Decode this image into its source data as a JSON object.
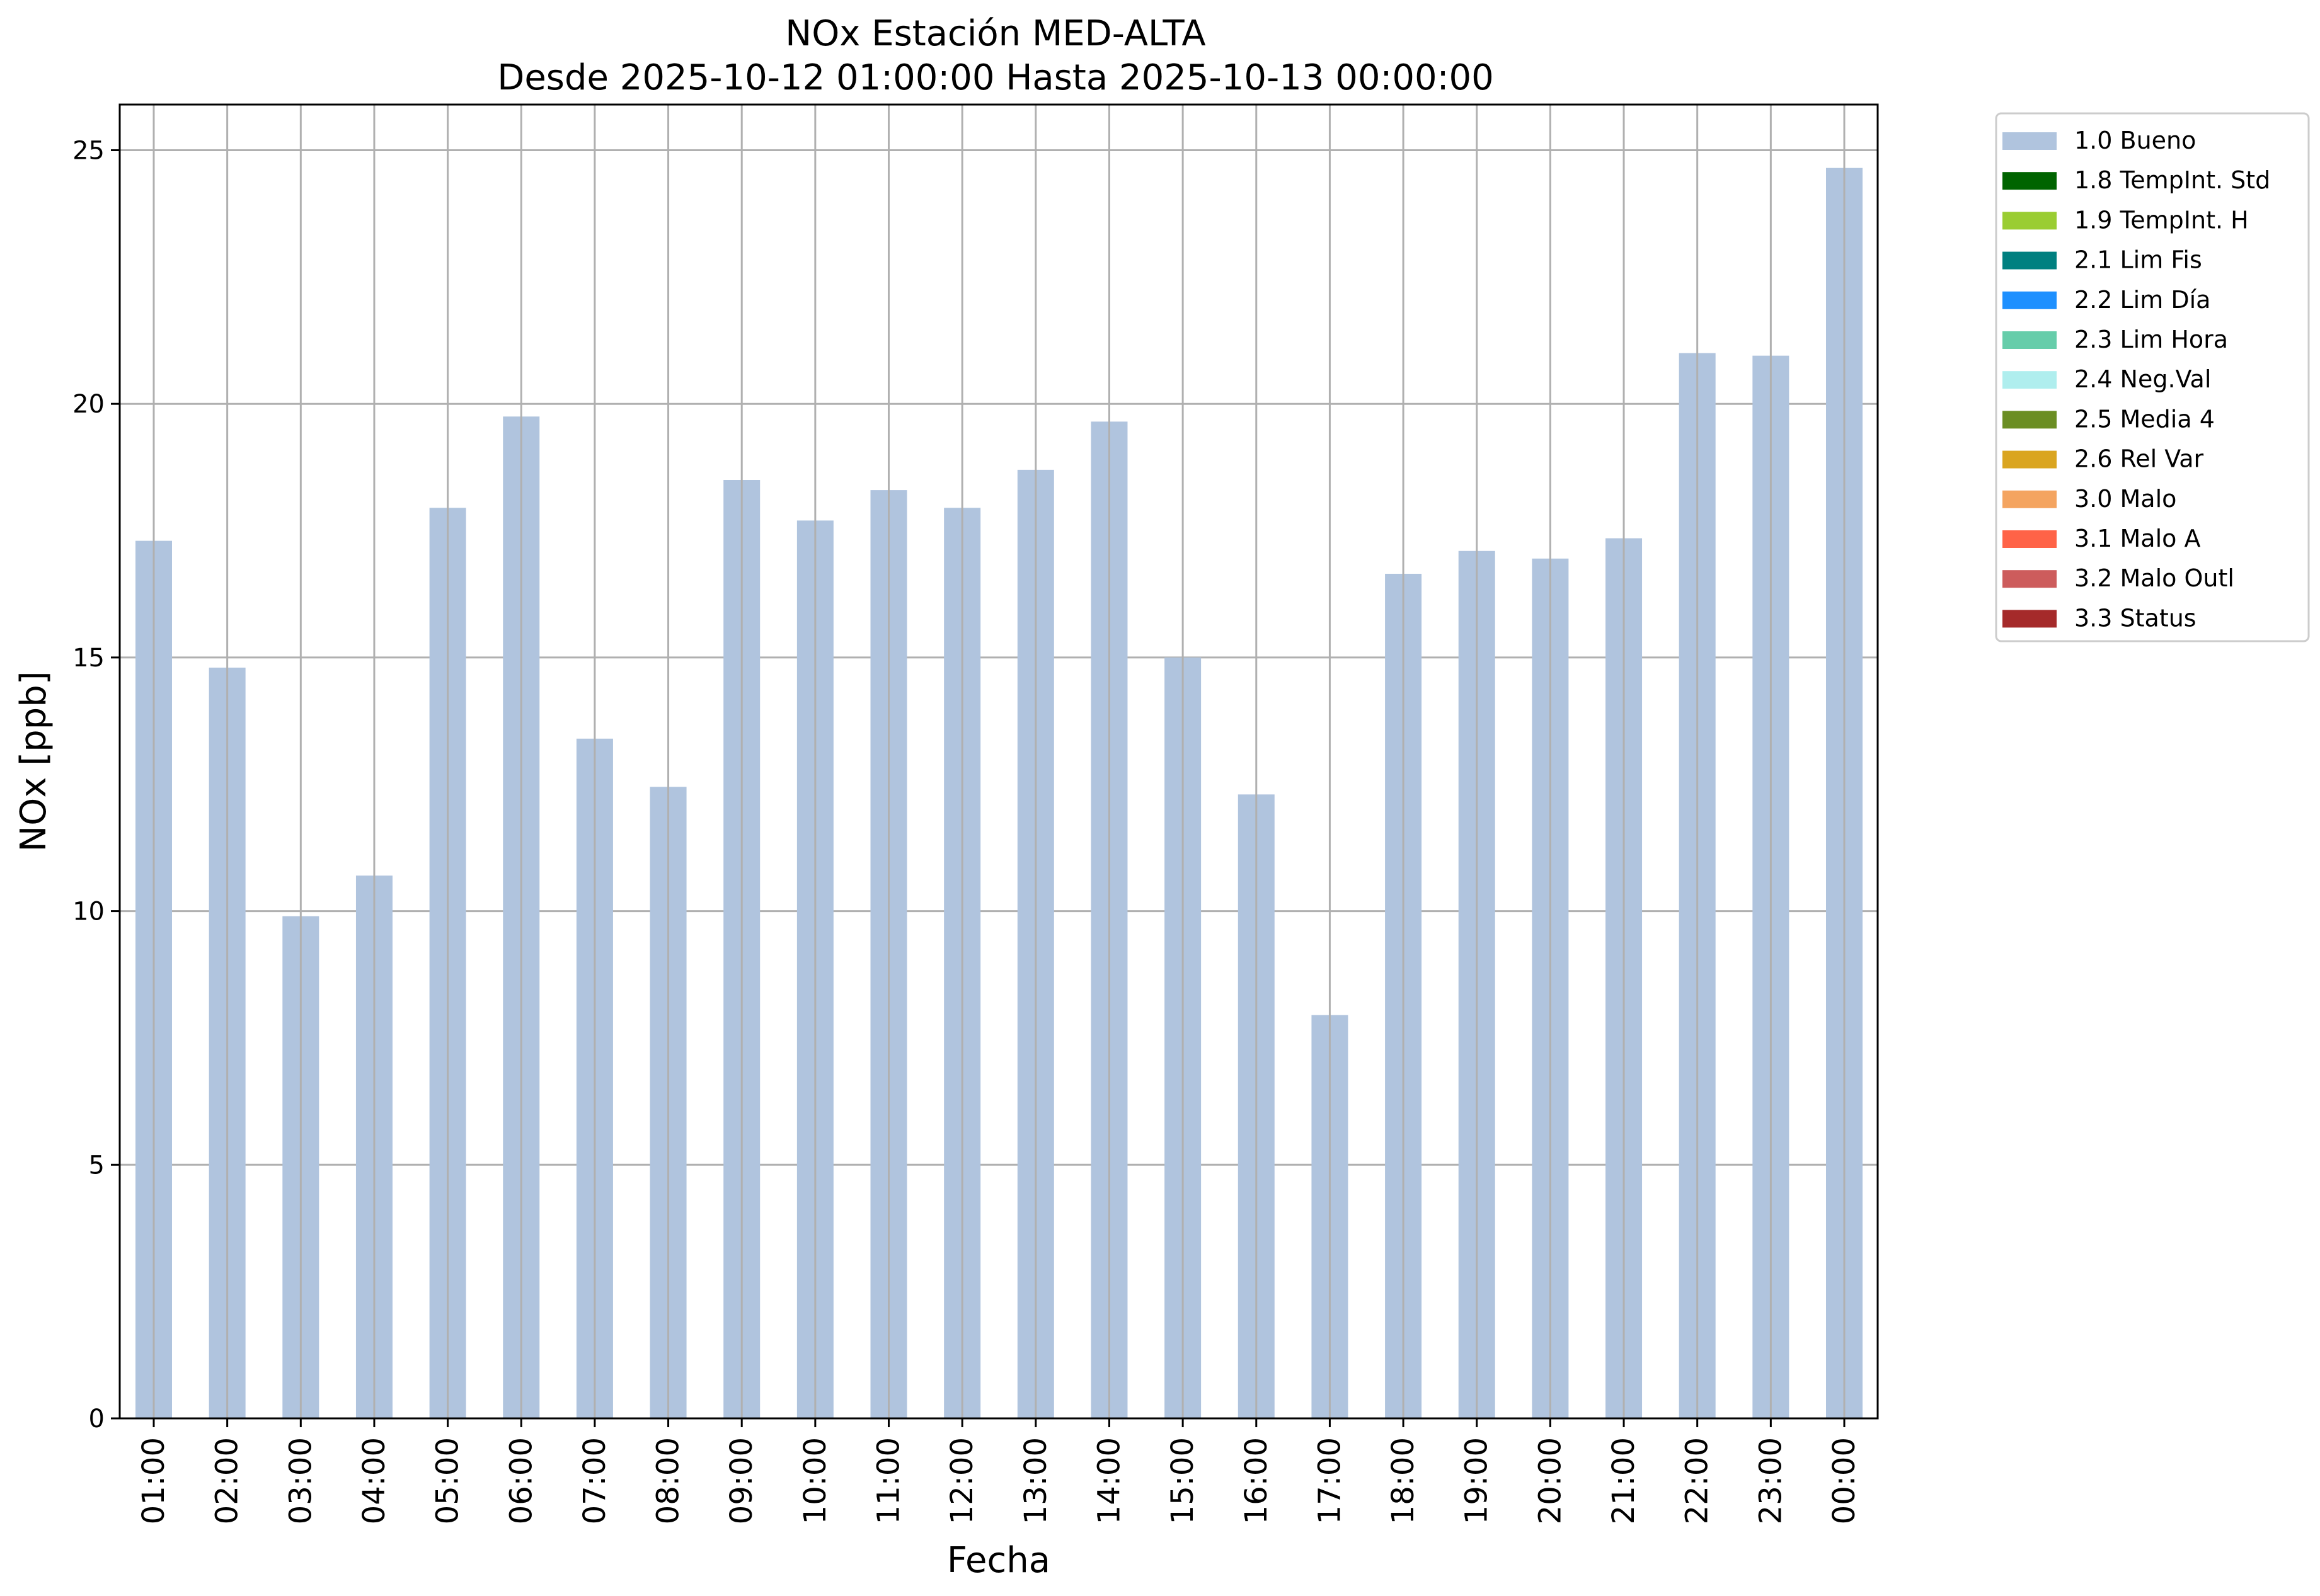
{
  "chart_data": {
    "type": "bar",
    "title": "NOx Estación MED-ALTA",
    "subtitle": "Desde 2025-10-12 01:00:00 Hasta 2025-10-13 00:00:00",
    "xlabel": "Fecha",
    "ylabel": "NOx [ppb]",
    "ylim": [
      0,
      25.9
    ],
    "yticks": [
      "0",
      "5",
      "10",
      "15",
      "20",
      "25"
    ],
    "categories": [
      "01:00",
      "02:00",
      "03:00",
      "04:00",
      "05:00",
      "06:00",
      "07:00",
      "08:00",
      "09:00",
      "10:00",
      "11:00",
      "12:00",
      "13:00",
      "14:00",
      "15:00",
      "16:00",
      "17:00",
      "18:00",
      "19:00",
      "20:00",
      "21:00",
      "22:00",
      "23:00",
      "00:00"
    ],
    "series": [
      {
        "name": "1.0 Bueno",
        "color": "#b0c4de",
        "values": [
          17.3,
          14.8,
          9.9,
          10.7,
          17.95,
          19.75,
          13.4,
          12.45,
          18.5,
          17.7,
          18.3,
          17.95,
          18.7,
          19.65,
          15.0,
          12.3,
          7.95,
          16.65,
          17.1,
          16.95,
          17.35,
          21.0,
          20.95,
          24.65
        ]
      }
    ],
    "legend": {
      "placement": "outside-top-right",
      "entries": [
        {
          "label": "1.0 Bueno",
          "color": "#b0c4de"
        },
        {
          "label": "1.8 TempInt. Std",
          "color": "#006400"
        },
        {
          "label": "1.9 TempInt. H",
          "color": "#9acd32"
        },
        {
          "label": "2.1 Lim Fis",
          "color": "#008080"
        },
        {
          "label": "2.2 Lim Día",
          "color": "#1e90ff"
        },
        {
          "label": "2.3 Lim Hora",
          "color": "#66cdaa"
        },
        {
          "label": "2.4 Neg.Val",
          "color": "#afeeee"
        },
        {
          "label": "2.5 Media 4",
          "color": "#6b8e23"
        },
        {
          "label": "2.6 Rel Var",
          "color": "#daa520"
        },
        {
          "label": "3.0 Malo",
          "color": "#f4a460"
        },
        {
          "label": "3.1 Malo A",
          "color": "#ff6347"
        },
        {
          "label": "3.2 Malo Outl",
          "color": "#cd5c5c"
        },
        {
          "label": "3.3 Status",
          "color": "#a52a2a"
        }
      ]
    },
    "grid": true
  }
}
